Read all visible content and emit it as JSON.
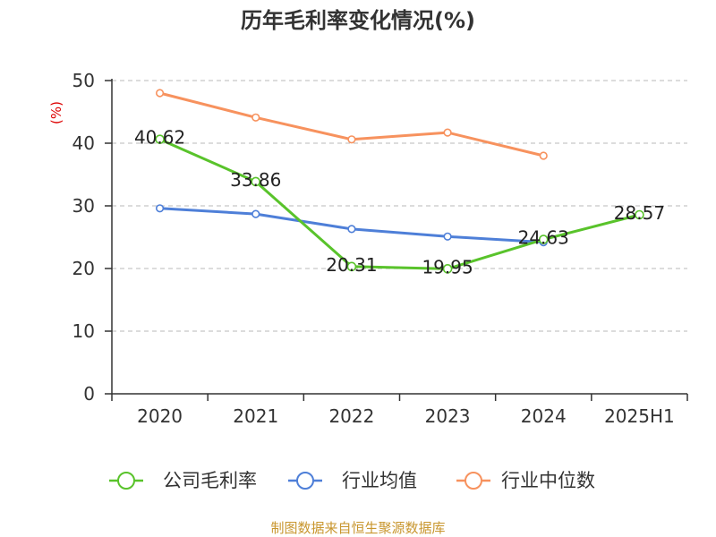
{
  "source_note": "制图数据来自恒生聚源数据库",
  "chart_data": {
    "type": "line",
    "title": "历年毛利率变化情况(%)",
    "xlabel": "",
    "ylabel": "(%)",
    "categories": [
      "2020",
      "2021",
      "2022",
      "2023",
      "2024",
      "2025H1"
    ],
    "ylim": [
      0,
      50
    ],
    "yticks": [
      0,
      10,
      20,
      30,
      40,
      50
    ],
    "grid": true,
    "legend": "bottom",
    "series": [
      {
        "name": "公司毛利率",
        "color": "#59c32b",
        "data_labels": true,
        "values": [
          40.62,
          33.86,
          20.31,
          19.95,
          24.63,
          28.57
        ]
      },
      {
        "name": "行业均值",
        "color": "#4e7fd8",
        "data_labels": false,
        "values": [
          29.6,
          28.7,
          26.3,
          25.1,
          24.2,
          null
        ]
      },
      {
        "name": "行业中位数",
        "color": "#f7925e",
        "data_labels": false,
        "values": [
          48.0,
          44.1,
          40.6,
          41.7,
          38.0,
          null
        ]
      }
    ]
  }
}
